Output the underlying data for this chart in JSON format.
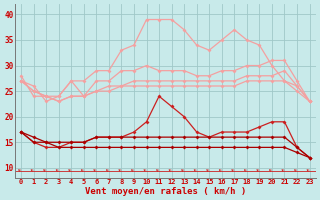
{
  "x": [
    0,
    1,
    2,
    3,
    4,
    5,
    6,
    7,
    8,
    9,
    10,
    11,
    12,
    13,
    14,
    15,
    16,
    17,
    18,
    19,
    20,
    21,
    22,
    23
  ],
  "line_rafales_high": [
    28,
    24,
    24,
    24,
    27,
    27,
    29,
    29,
    33,
    34,
    39,
    39,
    39,
    37,
    34,
    33,
    35,
    37,
    35,
    34,
    30,
    27,
    26,
    23
  ],
  "line_rafales_mid1": [
    27,
    26,
    23,
    24,
    27,
    24,
    27,
    27,
    29,
    29,
    30,
    29,
    29,
    29,
    28,
    28,
    29,
    29,
    30,
    30,
    31,
    31,
    27,
    23
  ],
  "line_rafales_mid2": [
    27,
    25,
    24,
    23,
    24,
    24,
    25,
    26,
    26,
    27,
    27,
    27,
    27,
    27,
    27,
    27,
    27,
    27,
    28,
    28,
    28,
    29,
    26,
    23
  ],
  "line_rafales_low": [
    27,
    25,
    24,
    23,
    24,
    24,
    25,
    25,
    26,
    26,
    26,
    26,
    26,
    26,
    26,
    26,
    26,
    26,
    27,
    27,
    27,
    27,
    25,
    23
  ],
  "line_moyen_high": [
    17,
    15,
    14,
    14,
    15,
    15,
    16,
    16,
    16,
    17,
    19,
    24,
    22,
    20,
    17,
    16,
    17,
    17,
    17,
    18,
    19,
    19,
    14,
    12
  ],
  "line_moyen_mid": [
    17,
    15,
    15,
    15,
    15,
    15,
    16,
    16,
    16,
    16,
    16,
    16,
    16,
    16,
    16,
    16,
    16,
    16,
    16,
    16,
    16,
    16,
    14,
    12
  ],
  "line_moyen_low": [
    17,
    16,
    15,
    14,
    14,
    14,
    14,
    14,
    14,
    14,
    14,
    14,
    14,
    14,
    14,
    14,
    14,
    14,
    14,
    14,
    14,
    14,
    13,
    12
  ],
  "xlabel": "Vent moyen/en rafales ( km/h )",
  "ylim": [
    8,
    42
  ],
  "yticks": [
    10,
    15,
    20,
    25,
    30,
    35,
    40
  ],
  "bg_color": "#c8eaea",
  "grid_color": "#a0c8c8",
  "color_light_salmon": "#f4a0a0",
  "color_salmon": "#f08080",
  "color_dark_red": "#cc2020",
  "color_darker_red": "#aa0000"
}
